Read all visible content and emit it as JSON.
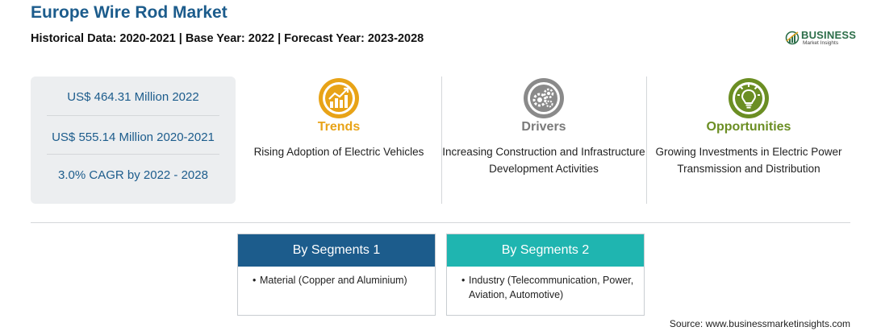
{
  "header": {
    "title": "Europe Wire Rod Market",
    "subtitle": "Historical Data: 2020-2021 | Base Year: 2022 | Forecast Year: 2023-2028"
  },
  "logo": {
    "word": "BUSINESS",
    "sub": "Market Insights"
  },
  "stats": [
    "US$ 464.31 Million 2022",
    "US$ 555.14 Million 2020-2021",
    "3.0% CAGR by 2022 - 2028"
  ],
  "columns": {
    "trends": {
      "icon": "chart-growth-icon",
      "title": "Trends",
      "text": "Rising Adoption of Electric Vehicles",
      "color": "#e8a317"
    },
    "drivers": {
      "icon": "gears-icon",
      "title": "Drivers",
      "text": "Increasing Construction and Infrastructure Development Activities",
      "color": "#7a7a7a"
    },
    "opportunities": {
      "icon": "lightbulb-icon",
      "title": "Opportunities",
      "text": "Growing Investments in Electric Power Transmission and Distribution",
      "color": "#6b8e23"
    }
  },
  "segments": [
    {
      "title": "By Segments 1",
      "bullet": "•",
      "item": "Material (Copper and Aluminium)",
      "color": "#1c5c8c"
    },
    {
      "title": "By Segments 2",
      "bullet": "•",
      "item": "Industry (Telecommunication, Power, Aviation, Automotive)",
      "color": "#1fb5b0"
    }
  ],
  "source": "Source: www.businessmarketinsights.com"
}
